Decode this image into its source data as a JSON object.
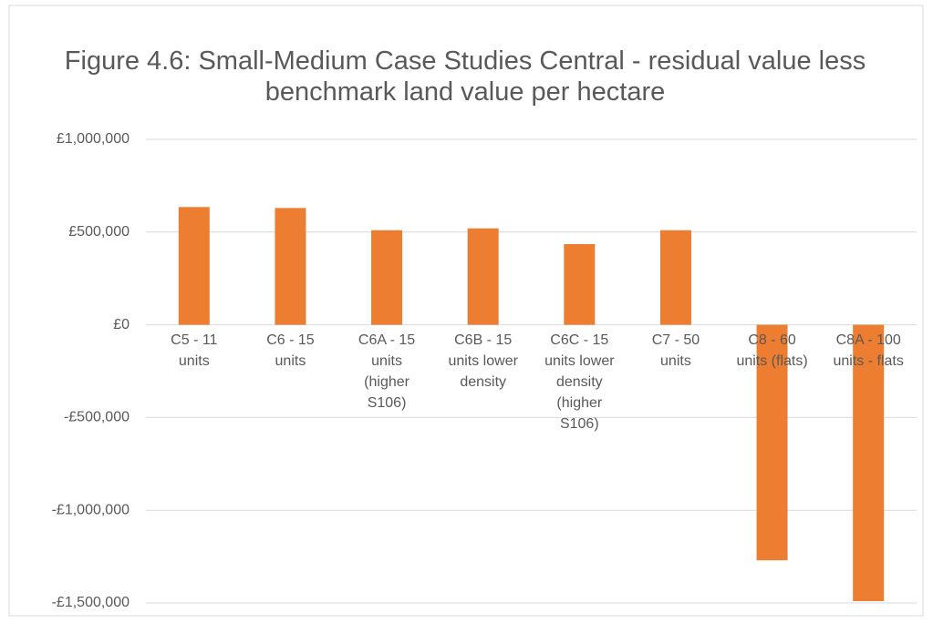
{
  "chart_data": {
    "type": "bar",
    "title": "Figure 4.6: Small-Medium Case Studies Central - residual value less benchmark land value per hectare",
    "categories": [
      "C5 - 11 units",
      "C6 - 15 units",
      "C6A - 15 units (higher S106)",
      "C6B - 15 units lower density",
      "C6C - 15 units lower density (higher S106)",
      "C7 - 50 units",
      "C8 - 60 units (flats)",
      "C8A - 100 units - flats"
    ],
    "values": [
      635000,
      630000,
      510000,
      520000,
      435000,
      510000,
      -1270000,
      -1490000
    ],
    "color": "#ed7d31",
    "ylim": [
      -1500000,
      1000000
    ],
    "yticks": [
      {
        "value": -1500000,
        "label": "-£1,500,000"
      },
      {
        "value": -1000000,
        "label": "-£1,000,000"
      },
      {
        "value": -500000,
        "label": "-£500,000"
      },
      {
        "value": 0,
        "label": "£0"
      },
      {
        "value": 500000,
        "label": "£500,000"
      },
      {
        "value": 1000000,
        "label": "£1,000,000"
      }
    ],
    "grid": true
  }
}
